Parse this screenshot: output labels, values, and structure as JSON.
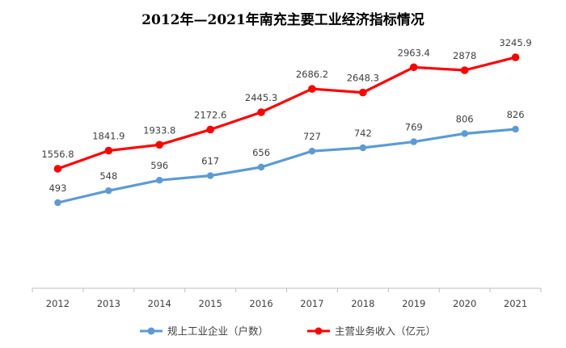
{
  "chart_data": {
    "type": "line",
    "title": "2012年—2021年南充主要工业经济指标情况",
    "categories": [
      "2012",
      "2013",
      "2014",
      "2015",
      "2016",
      "2017",
      "2018",
      "2019",
      "2020",
      "2021"
    ],
    "series": [
      {
        "name": "规上工业企业（户数）",
        "values": [
          493,
          548,
          596,
          617,
          656,
          727,
          742,
          769,
          806,
          826
        ],
        "labels": [
          "493",
          "548",
          "596",
          "617",
          "656",
          "727",
          "742",
          "769",
          "806",
          "826"
        ],
        "color": "#5B9BD5"
      },
      {
        "name": "主营业务收入（亿元）",
        "values": [
          1556.8,
          1841.9,
          1933.8,
          2172.6,
          2445.3,
          2686.2,
          2648.3,
          2963.4,
          2878,
          3245.9
        ],
        "labels": [
          "1556.8",
          "1841.9",
          "1933.8",
          "2172.6",
          "2445.3",
          "2686.2",
          "2648.3",
          "2963.4",
          "2878",
          "3245.9"
        ],
        "color": "#FF0000"
      }
    ],
    "grid": false,
    "legend_position": "bottom"
  }
}
